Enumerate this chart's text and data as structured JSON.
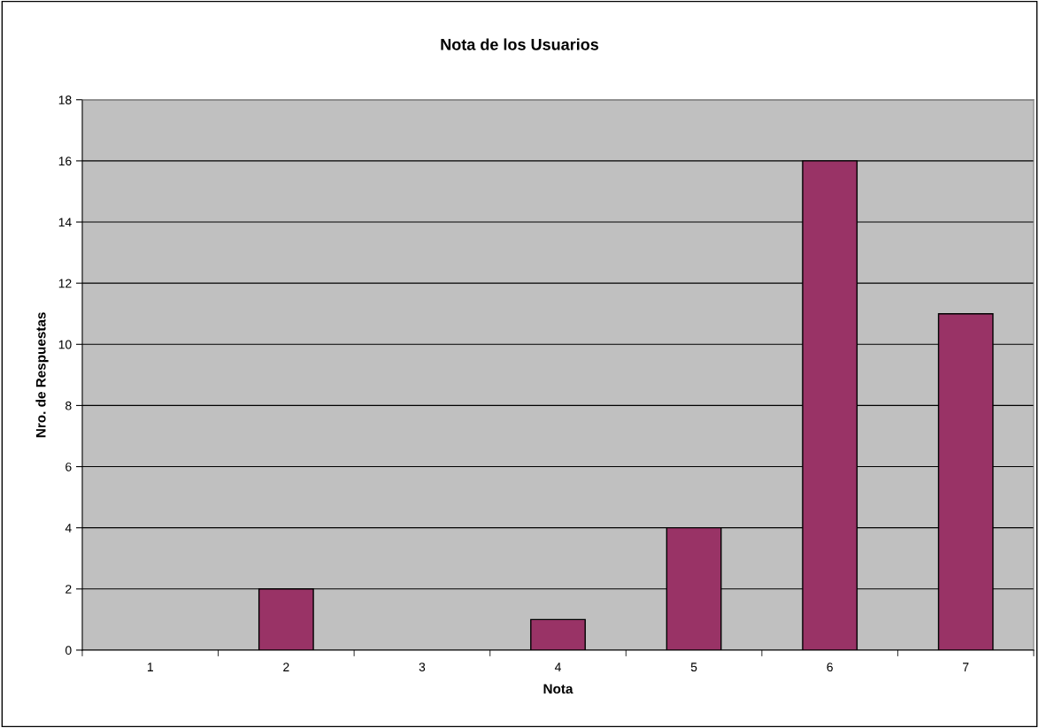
{
  "chart_data": {
    "type": "bar",
    "title": "Nota de los Usuarios",
    "xlabel": "Nota",
    "ylabel": "Nro. de Respuestas",
    "categories": [
      "1",
      "2",
      "3",
      "4",
      "5",
      "6",
      "7"
    ],
    "values": [
      0,
      2,
      0,
      1,
      4,
      16,
      11
    ],
    "color": "#993366",
    "ylim": [
      0,
      18
    ],
    "yticks": [
      0,
      2,
      4,
      6,
      8,
      10,
      12,
      14,
      16,
      18
    ],
    "grid": "y",
    "legend": false
  }
}
